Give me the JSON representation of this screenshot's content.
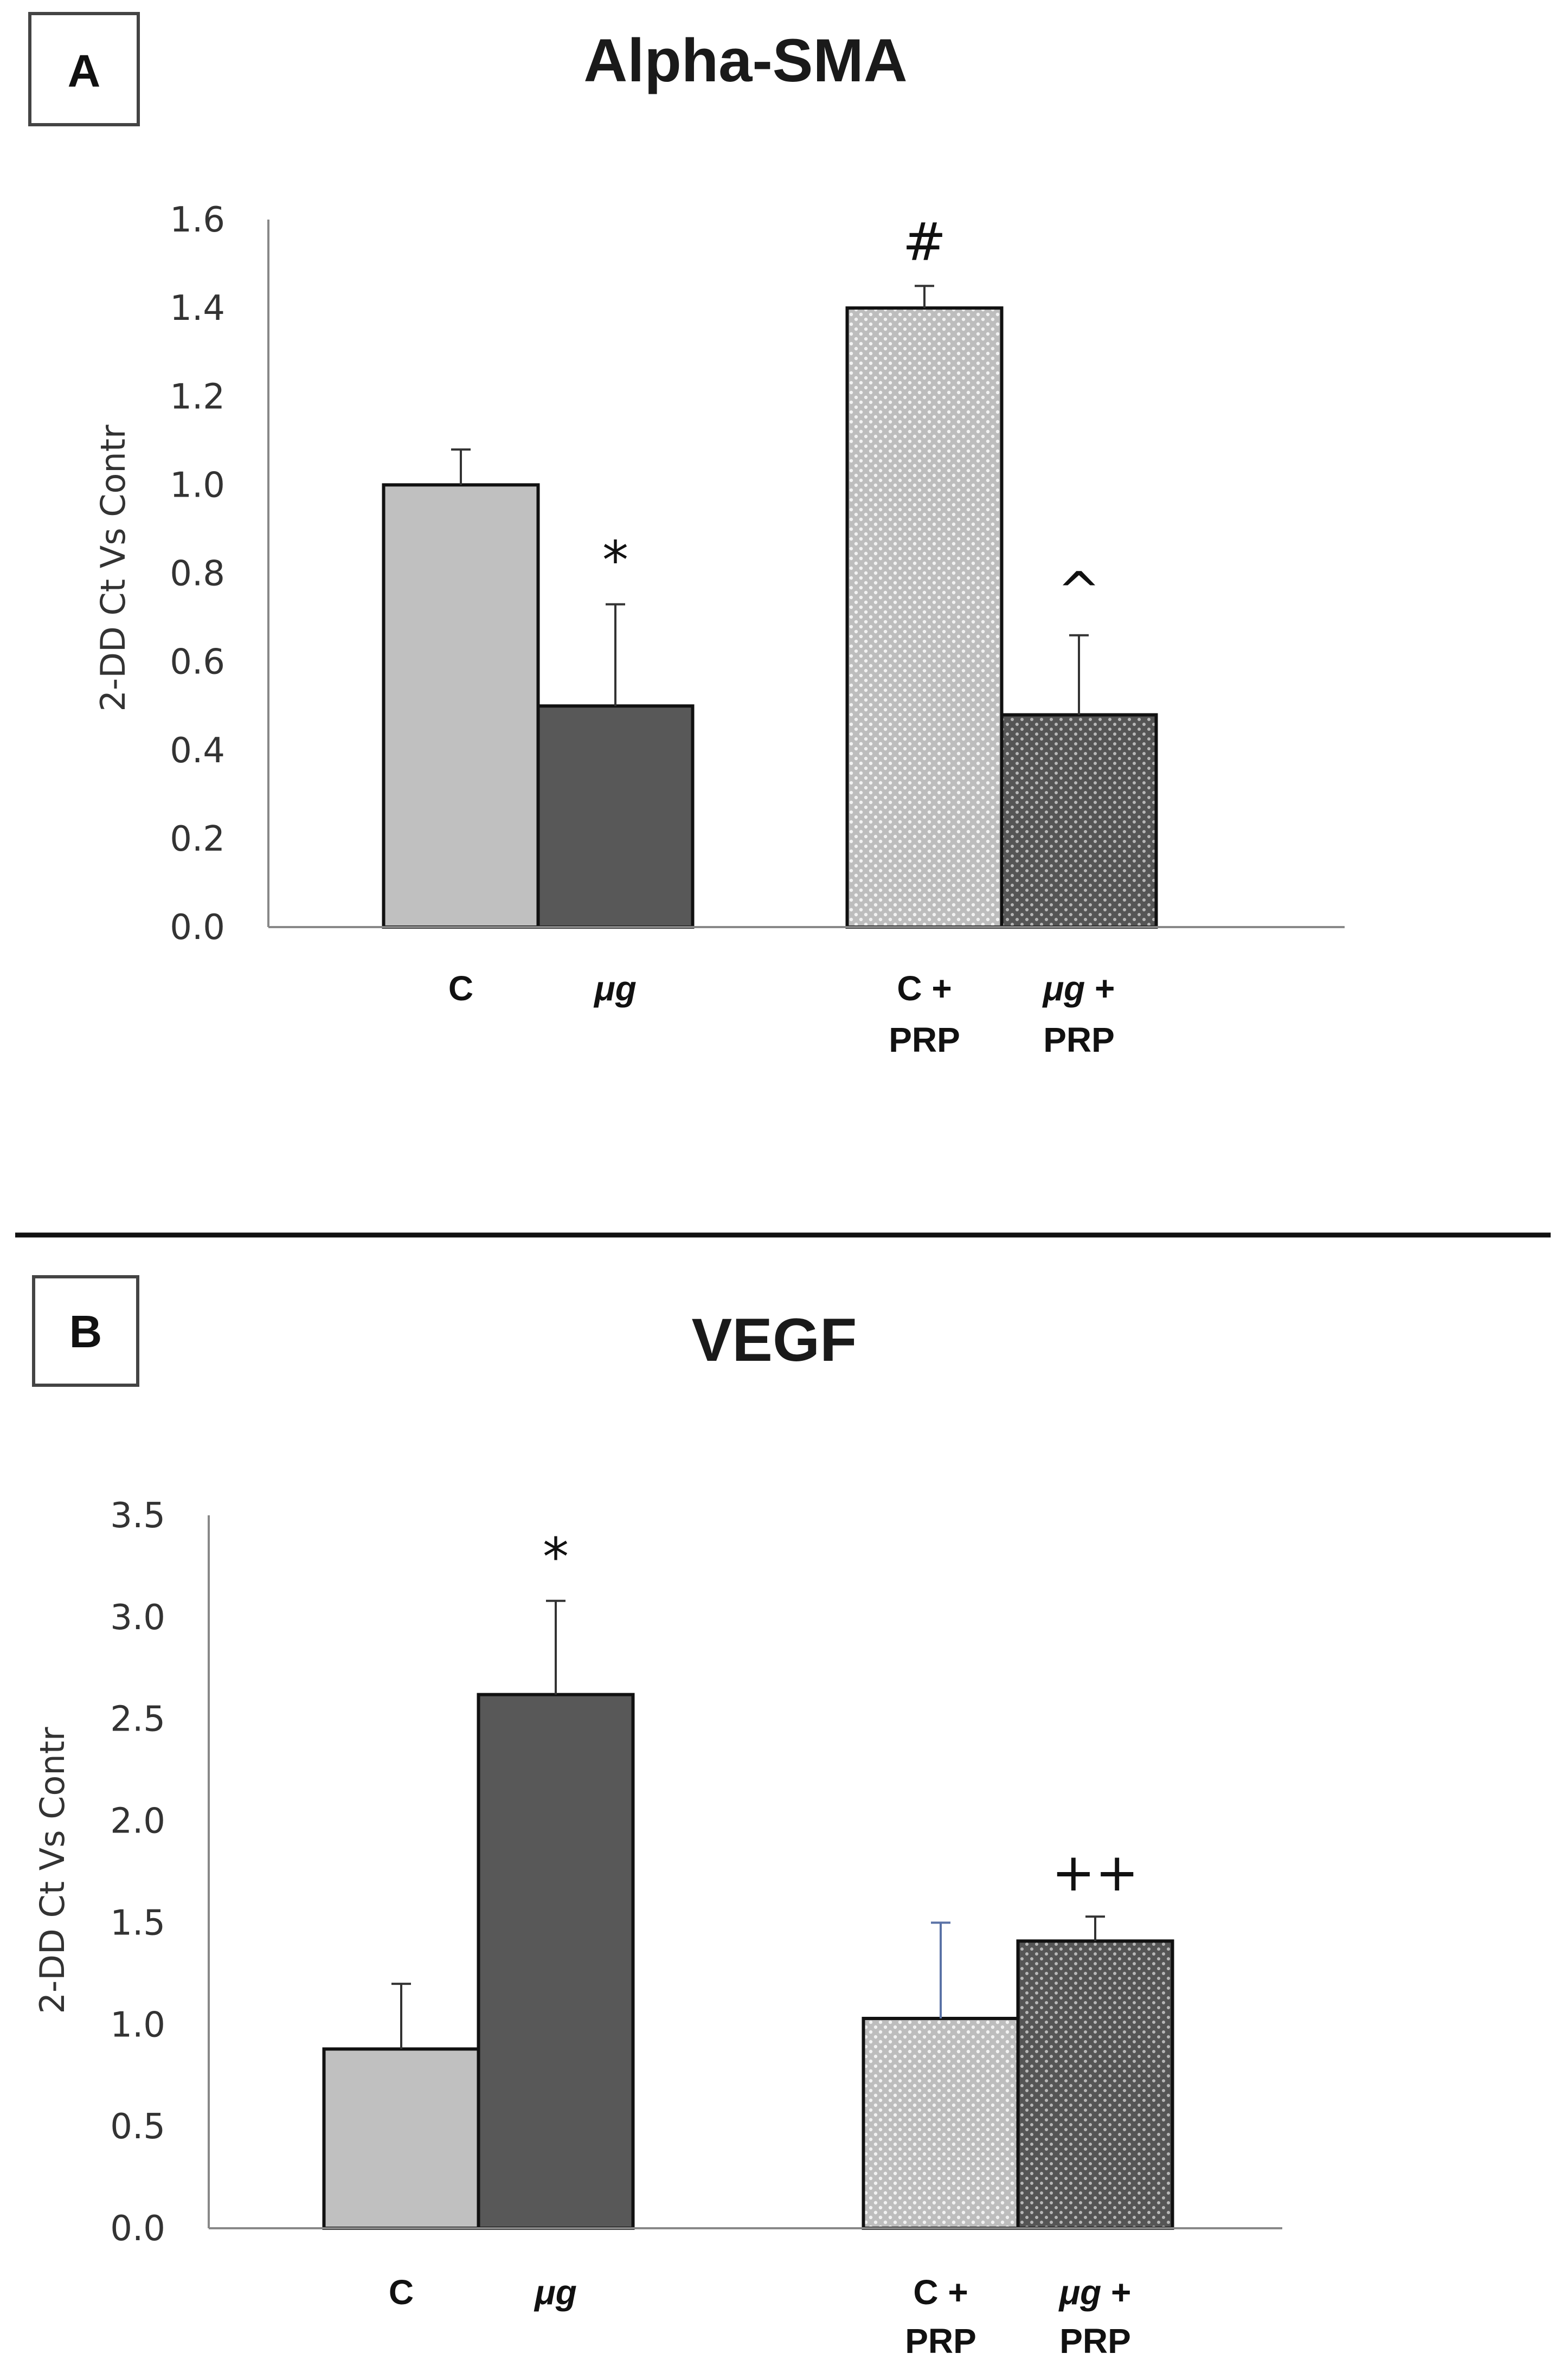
{
  "chart_data": [
    {
      "panel": "A",
      "type": "bar",
      "title": "Alpha-SMA",
      "ylabel": "2-DD Ct Vs Contr",
      "xlabel": "",
      "ylim": [
        0,
        1.6
      ],
      "yticks": [
        0.0,
        0.2,
        0.4,
        0.6,
        0.8,
        1.0,
        1.2,
        1.4,
        1.6
      ],
      "ytick_labels": [
        "0.0",
        "0.2",
        "0.4",
        "0.6",
        "0.8",
        "1.0",
        "1.2",
        "1.4",
        "1.6"
      ],
      "grid": false,
      "groups": [
        {
          "bars": [
            {
              "label": [
                "C"
              ],
              "value": 1.0,
              "error": 0.08,
              "annotation": "",
              "style": "light-solid"
            },
            {
              "label": [
                "μg"
              ],
              "value": 0.5,
              "error": 0.23,
              "annotation": "*",
              "style": "dark-solid"
            }
          ]
        },
        {
          "bars": [
            {
              "label": [
                "C +",
                "PRP"
              ],
              "value": 1.4,
              "error": 0.05,
              "annotation": "#",
              "style": "light-dotted"
            },
            {
              "label": [
                "μg +",
                "PRP"
              ],
              "value": 0.48,
              "error": 0.18,
              "annotation": "^",
              "style": "dark-dotted"
            }
          ]
        }
      ]
    },
    {
      "panel": "B",
      "type": "bar",
      "title": "VEGF",
      "ylabel": "2-DD Ct Vs Contr",
      "xlabel": "",
      "ylim": [
        0,
        3.5
      ],
      "yticks": [
        0.0,
        0.5,
        1.0,
        1.5,
        2.0,
        2.5,
        3.0,
        3.5
      ],
      "ytick_labels": [
        "0.0",
        "0.5",
        "1.0",
        "1.5",
        "2.0",
        "2.5",
        "3.0",
        "3.5"
      ],
      "grid": false,
      "groups": [
        {
          "bars": [
            {
              "label": [
                "C"
              ],
              "value": 0.88,
              "error": 0.32,
              "annotation": "",
              "style": "light-solid"
            },
            {
              "label": [
                "μg"
              ],
              "value": 2.62,
              "error": 0.46,
              "annotation": "*",
              "style": "dark-solid"
            }
          ]
        },
        {
          "bars": [
            {
              "label": [
                "C +",
                "PRP"
              ],
              "value": 1.03,
              "error": 0.47,
              "annotation": "",
              "style": "light-dotted"
            },
            {
              "label": [
                "μg +",
                "PRP"
              ],
              "value": 1.41,
              "error": 0.12,
              "annotation": "++",
              "style": "dark-dotted"
            }
          ]
        }
      ]
    }
  ],
  "colors": {
    "light_fill": "#c0c0c0",
    "dark_fill": "#585858",
    "outline": "#111111",
    "axis": "#888888",
    "error_bar_a": "#333333",
    "error_bar_b_light": "#5a72a6",
    "error_bar_b_dark": "#333333",
    "divider": "#111111"
  }
}
